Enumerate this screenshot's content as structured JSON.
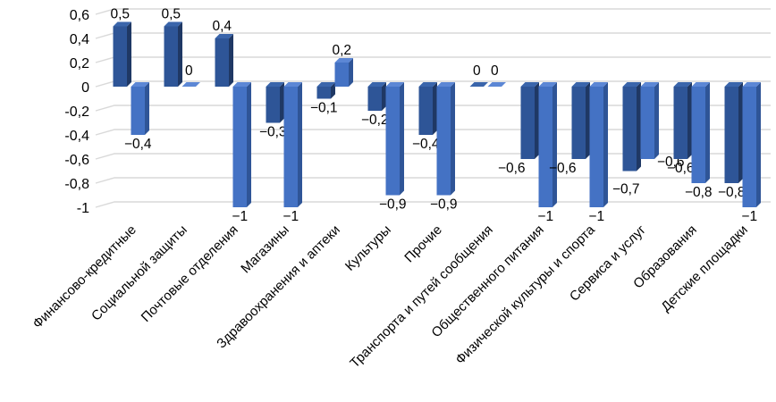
{
  "chart_data": {
    "type": "bar",
    "title": "",
    "subtitle": "",
    "legend": "none",
    "grid": true,
    "style": "3d-clustered-column",
    "decimal_separator": ",",
    "categories": [
      "Финансово-кредитные",
      "Социальной защиты",
      "Почтовые отделения",
      "Магазины",
      "Здравоохранения и аптеки",
      "Культуры",
      "Прочие",
      "Транспорта и путей сообщения",
      "Общественного питания",
      "Физической культуры и спорта",
      "Сервиса и услуг",
      "Образования",
      "Детские площадки"
    ],
    "series": [
      {
        "values": [
          0.5,
          0.5,
          0.4,
          -0.3,
          -0.1,
          -0.2,
          -0.4,
          0,
          -0.6,
          -0.6,
          -0.7,
          -0.6,
          -0.8
        ],
        "labels": [
          "0,5",
          "0,5",
          "0,4",
          "−0,3",
          "−0,1",
          "−0,2",
          "−0,4",
          "0",
          "−0,6",
          "−0,6",
          "−0,7",
          "−0,6",
          "−0,8"
        ],
        "color": "#2E5597",
        "side_color": "#1F3864",
        "cap_color": "#3A65AB"
      },
      {
        "values": [
          -0.4,
          0,
          -1,
          -1,
          0.2,
          -0.9,
          -0.9,
          0,
          -1,
          -1,
          -0.6,
          -0.8,
          -1
        ],
        "labels": [
          "−0,4",
          "0",
          "−1",
          "−1",
          "0,2",
          "−0,9",
          "−0,9",
          "0",
          "−1",
          "−1",
          "−0,6",
          "−0,8",
          "−1"
        ],
        "color": "#4472C4",
        "side_color": "#2F5597",
        "cap_color": "#5C87D5"
      }
    ],
    "y_axis": {
      "min": -1,
      "max": 0.6,
      "tick_step": 0.2,
      "ticks": [
        {
          "v": 0.6,
          "label": "0,6"
        },
        {
          "v": 0.4,
          "label": "0,4"
        },
        {
          "v": 0.2,
          "label": "0,2"
        },
        {
          "v": 0,
          "label": "0"
        },
        {
          "v": -0.2,
          "label": "-0,2"
        },
        {
          "v": -0.4,
          "label": "-0,4"
        },
        {
          "v": -0.6,
          "label": "-0,6"
        },
        {
          "v": -0.8,
          "label": "-0,8"
        },
        {
          "v": -1,
          "label": "-1"
        }
      ]
    },
    "colors": {
      "background": "#FFFFFF",
      "gridline": "#D9D9D9",
      "text": "#000000"
    }
  }
}
